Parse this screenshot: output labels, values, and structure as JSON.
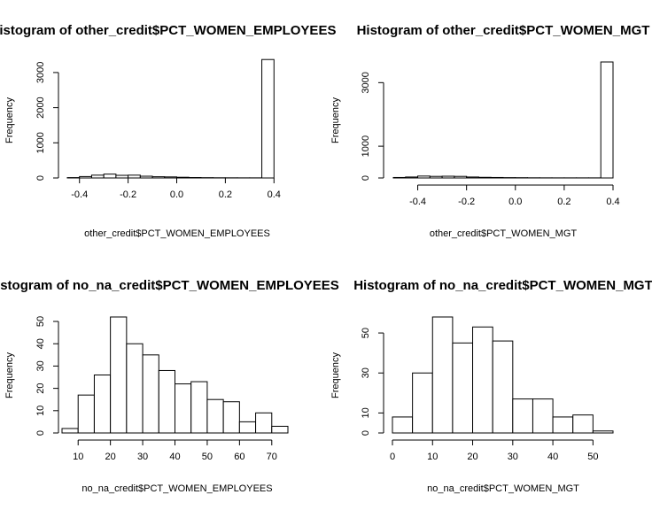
{
  "chart_data": [
    {
      "type": "bar",
      "title": "Histogram of other_credit$PCT_WOMEN_EMPLOYEES",
      "xlabel": "other_credit$PCT_WOMEN_EMPLOYEES",
      "ylabel": "Frequency",
      "xlim": [
        -0.45,
        0.45
      ],
      "ylim": [
        0,
        3300
      ],
      "x_ticks": [
        -0.4,
        -0.2,
        0.0,
        0.2,
        0.4
      ],
      "x_tick_labels": [
        "-0.4",
        "-0.2",
        "0.0",
        "0.2",
        "0.4"
      ],
      "y_ticks": [
        0,
        1000,
        2000,
        3000
      ],
      "y_tick_labels": [
        "0",
        "1000",
        "2000",
        "3000"
      ],
      "bin_edges": [
        -0.45,
        -0.4,
        -0.35,
        -0.3,
        -0.25,
        -0.2,
        -0.15,
        -0.1,
        -0.05,
        0.0,
        0.05,
        0.1,
        0.15,
        0.2,
        0.25,
        0.3,
        0.35,
        0.4
      ],
      "values": [
        10,
        40,
        80,
        110,
        75,
        80,
        50,
        35,
        30,
        20,
        12,
        8,
        5,
        4,
        3,
        3,
        3370
      ]
    },
    {
      "type": "bar",
      "title": "Histogram of other_credit$PCT_WOMEN_MGT",
      "xlabel": "other_credit$PCT_WOMEN_MGT",
      "ylabel": "Frequency",
      "xlim": [
        -0.5,
        0.4
      ],
      "ylim": [
        0,
        3650
      ],
      "x_ticks": [
        -0.4,
        -0.2,
        0.0,
        0.2,
        0.4
      ],
      "x_tick_labels": [
        "-0.4",
        "-0.2",
        "0.0",
        "0.2",
        "0.4"
      ],
      "y_ticks": [
        0,
        1000,
        3000
      ],
      "y_tick_labels": [
        "0",
        "1000",
        "3000"
      ],
      "bin_edges": [
        -0.5,
        -0.45,
        -0.4,
        -0.35,
        -0.3,
        -0.25,
        -0.2,
        -0.15,
        -0.1,
        -0.05,
        0.0,
        0.05,
        0.1,
        0.15,
        0.2,
        0.25,
        0.3,
        0.35,
        0.4
      ],
      "values": [
        15,
        30,
        60,
        50,
        55,
        50,
        30,
        20,
        15,
        10,
        8,
        5,
        4,
        3,
        3,
        3,
        3,
        3650
      ]
    },
    {
      "type": "bar",
      "title": "Histogram of no_na_credit$PCT_WOMEN_EMPLOYEES",
      "xlabel": "no_na_credit$PCT_WOMEN_EMPLOYEES",
      "ylabel": "Frequency",
      "xlim": [
        5,
        75
      ],
      "ylim": [
        0,
        52
      ],
      "x_ticks": [
        10,
        20,
        30,
        40,
        50,
        60,
        70
      ],
      "x_tick_labels": [
        "10",
        "20",
        "30",
        "40",
        "50",
        "60",
        "70"
      ],
      "y_ticks": [
        0,
        10,
        20,
        30,
        40,
        50
      ],
      "y_tick_labels": [
        "0",
        "10",
        "20",
        "30",
        "40",
        "50"
      ],
      "bin_edges": [
        5,
        10,
        15,
        20,
        25,
        30,
        35,
        40,
        45,
        50,
        55,
        60,
        65,
        70,
        75
      ],
      "values": [
        2,
        17,
        26,
        52,
        40,
        35,
        28,
        22,
        23,
        15,
        14,
        5,
        9,
        3
      ]
    },
    {
      "type": "bar",
      "title": "Histogram of no_na_credit$PCT_WOMEN_MGT",
      "xlabel": "no_na_credit$PCT_WOMEN_MGT",
      "ylabel": "Frequency",
      "xlim": [
        0,
        55
      ],
      "ylim": [
        0,
        58
      ],
      "x_ticks": [
        0,
        10,
        20,
        30,
        40,
        50
      ],
      "x_tick_labels": [
        "0",
        "10",
        "20",
        "30",
        "40",
        "50"
      ],
      "y_ticks": [
        0,
        10,
        30,
        50
      ],
      "y_tick_labels": [
        "0",
        "10",
        "30",
        "50"
      ],
      "bin_edges": [
        0,
        5,
        10,
        15,
        20,
        25,
        30,
        35,
        40,
        45,
        50,
        55
      ],
      "values": [
        8,
        30,
        58,
        45,
        53,
        46,
        17,
        17,
        8,
        9,
        1
      ]
    }
  ]
}
